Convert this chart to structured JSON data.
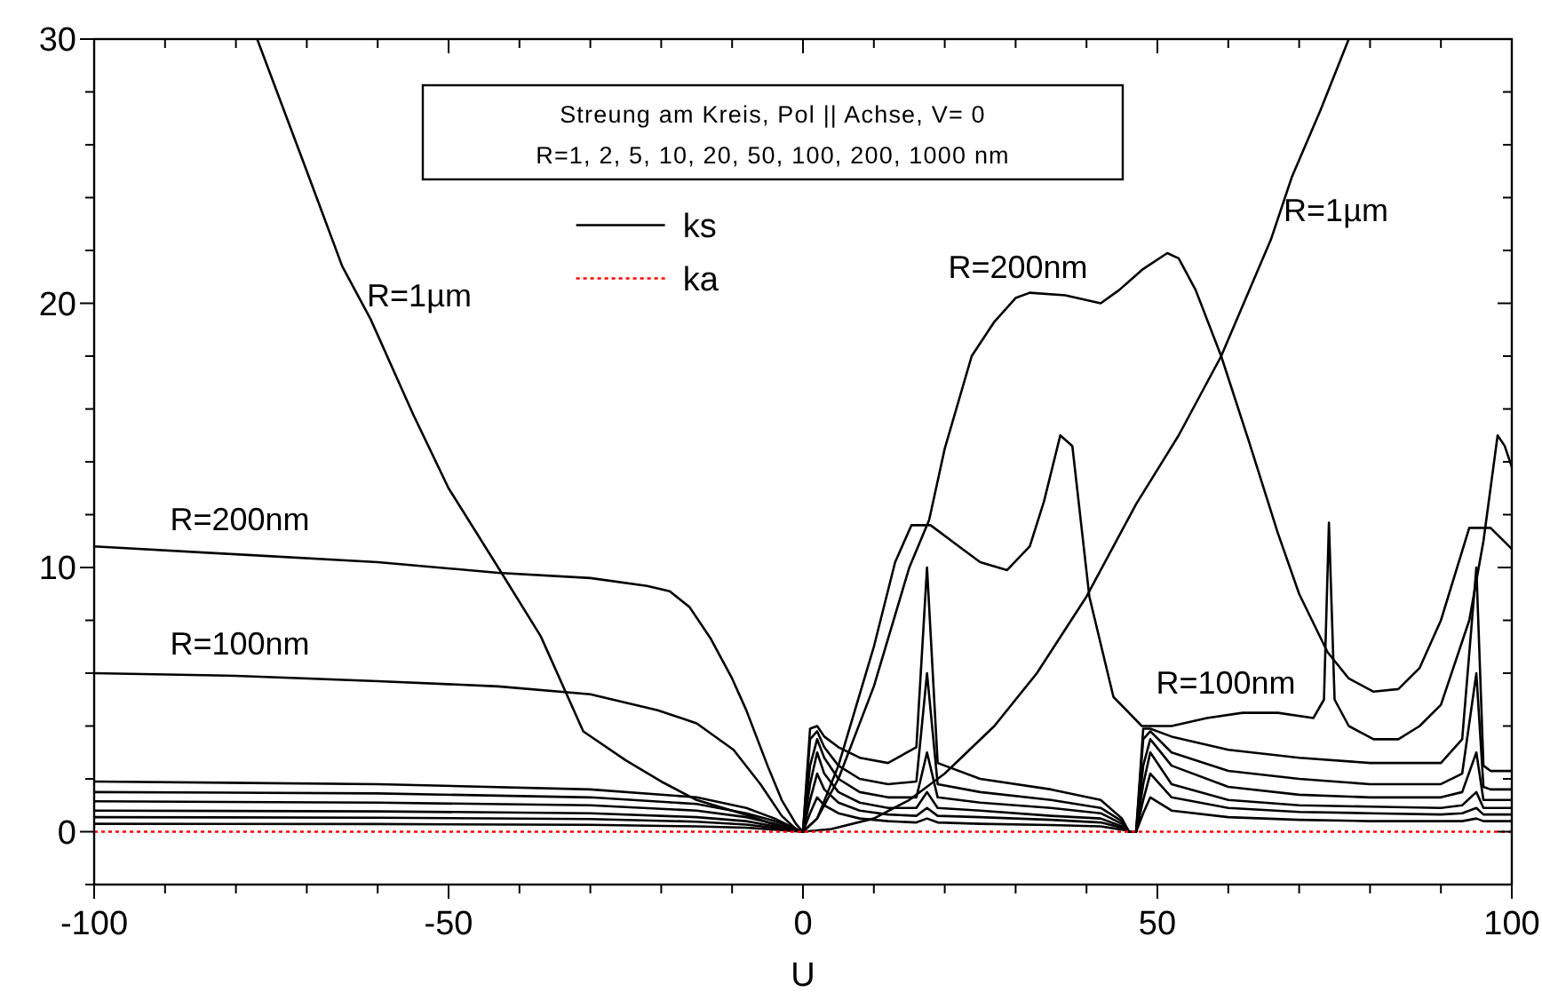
{
  "chart_data": {
    "type": "line",
    "title": "Streung am Kreis, Pol || Achse, V=  0",
    "subtitle": "R=1, 2, 5, 10, 20, 50, 100, 200, 1000 nm",
    "xlabel": "U",
    "xlim": [
      -100,
      100
    ],
    "ylim": [
      -2,
      30
    ],
    "xticks": [
      -100,
      {
        "value": -90,
        "label": null
      },
      {
        "value": -80,
        "label": null
      },
      {
        "value": -70,
        "label": null
      },
      {
        "value": -60,
        "label": null
      },
      -50,
      {
        "value": -40,
        "label": null
      },
      {
        "value": -30,
        "label": null
      },
      {
        "value": -20,
        "label": null
      },
      {
        "value": -10,
        "label": null
      },
      0,
      {
        "value": 10,
        "label": null
      },
      {
        "value": 20,
        "label": null
      },
      {
        "value": 30,
        "label": null
      },
      {
        "value": 40,
        "label": null
      },
      50,
      {
        "value": 60,
        "label": null
      },
      {
        "value": 70,
        "label": null
      },
      {
        "value": 80,
        "label": null
      },
      {
        "value": 90,
        "label": null
      },
      100
    ],
    "yticks": [
      {
        "value": -2,
        "label": null
      },
      0,
      {
        "value": 2,
        "label": null
      },
      {
        "value": 4,
        "label": null
      },
      {
        "value": 6,
        "label": null
      },
      {
        "value": 8,
        "label": null
      },
      10,
      {
        "value": 12,
        "label": null
      },
      {
        "value": 14,
        "label": null
      },
      {
        "value": 16,
        "label": null
      },
      {
        "value": 18,
        "label": null
      },
      20,
      {
        "value": 22,
        "label": null
      },
      {
        "value": 24,
        "label": null
      },
      {
        "value": 26,
        "label": null
      },
      {
        "value": 28,
        "label": null
      },
      30
    ],
    "grid": false,
    "legend": "top",
    "marker": "none",
    "annotations": [
      "R=1µm",
      "R=200nm",
      "R=100nm",
      "R=200nm",
      "R=1µm",
      "R=100nm"
    ],
    "series": [
      {
        "name": "ks",
        "color": "#000000",
        "line_style": "solid",
        "x": [
          -100,
          -80,
          -60,
          -43,
          -30,
          -22,
          -18.8,
          -16,
          -13,
          -10,
          -8,
          -5,
          -3,
          -1,
          0,
          2,
          5,
          10,
          15,
          17.8,
          20,
          23.8,
          27,
          30,
          32,
          37,
          42,
          44.6,
          48,
          51.4,
          53,
          55.4,
          59,
          63,
          67,
          70,
          74,
          77,
          80.5,
          84,
          87,
          90,
          94,
          97,
          100
        ],
        "values": [
          10.8,
          10.5,
          10.2,
          9.8,
          9.6,
          9.3,
          9.1,
          8.5,
          7.3,
          5.8,
          4.6,
          2.5,
          1.2,
          0.3,
          0,
          0.5,
          2,
          5.5,
          10,
          11.8,
          14.5,
          18,
          19.3,
          20.2,
          20.4,
          20.3,
          20,
          20.5,
          21.3,
          21.9,
          21.7,
          20.5,
          18,
          14.7,
          11.3,
          9,
          6.8,
          5.8,
          5.3,
          5.4,
          6.2,
          8,
          11.5,
          11.5,
          10.7
        ]
      },
      {
        "color": "#000000",
        "line_style": "solid",
        "x": [
          -77,
          -70,
          -65,
          -61,
          -55,
          -50,
          -43,
          -37,
          -31,
          -25,
          -20,
          -15,
          -10,
          -7.5,
          -5,
          -2,
          0,
          4,
          10,
          15,
          20,
          27,
          33,
          40,
          47,
          53,
          59,
          66,
          69,
          73,
          77
        ],
        "values": [
          30,
          25,
          21.4,
          19.4,
          15.8,
          13,
          10,
          7.4,
          3.8,
          2.7,
          1.9,
          1.2,
          0.8,
          0.6,
          0.35,
          0.1,
          0,
          0.1,
          0.5,
          1.2,
          2.2,
          4,
          6,
          8.9,
          12.4,
          15,
          18,
          22.4,
          24.8,
          27.3,
          30
        ]
      },
      {
        "color": "#000000",
        "line_style": "solid",
        "x": [
          -100,
          -80,
          -60,
          -43,
          -30,
          -20.5,
          -15,
          -9.8,
          -6,
          -3,
          -1,
          0,
          2,
          5,
          10,
          13,
          15.3,
          18,
          22,
          25,
          28.8,
          32,
          34,
          36.3,
          38,
          40.4,
          43.8,
          47.8,
          52,
          57,
          62,
          67,
          72,
          73.5,
          74.2,
          75,
          77,
          80.5,
          84,
          87,
          90,
          94,
          96,
          98,
          99,
          100
        ],
        "values": [
          6,
          5.9,
          5.7,
          5.5,
          5.2,
          4.6,
          4.1,
          3.1,
          1.8,
          0.6,
          0.1,
          0,
          0.5,
          2.5,
          7,
          10.2,
          11.6,
          11.6,
          10.8,
          10.2,
          9.9,
          10.8,
          12.5,
          15,
          14.6,
          8.9,
          5.1,
          4,
          4,
          4.3,
          4.5,
          4.5,
          4.3,
          5,
          11.7,
          5,
          4,
          3.5,
          3.5,
          4,
          4.8,
          8,
          11,
          15,
          14.6,
          13.8
        ]
      },
      {
        "color": "#000000",
        "line_style": "solid",
        "x": [
          -100,
          -60,
          -30,
          -15,
          -8,
          -4,
          -1,
          0,
          1,
          2,
          3,
          5,
          8,
          12,
          16,
          17.5,
          19,
          25,
          35,
          42,
          45,
          46,
          47,
          48,
          49,
          52,
          60,
          70,
          80,
          90,
          93,
          95,
          96,
          97,
          100
        ],
        "values": [
          1.9,
          1.8,
          1.6,
          1.3,
          0.9,
          0.5,
          0.1,
          0,
          3.9,
          4,
          3.6,
          3.2,
          2.8,
          2.6,
          3.2,
          10,
          2.6,
          2,
          1.6,
          1.2,
          0.5,
          0,
          0,
          3.9,
          3.9,
          3.6,
          3.1,
          2.8,
          2.6,
          2.6,
          3.5,
          10,
          2.5,
          2.3,
          2.3
        ]
      },
      {
        "color": "#000000",
        "line_style": "solid",
        "x": [
          -100,
          -60,
          -30,
          -15,
          -8,
          -4,
          -1,
          0,
          1,
          2,
          3,
          5,
          8,
          12,
          16,
          17.5,
          19,
          25,
          35,
          42,
          45,
          46,
          47,
          48,
          49,
          52,
          60,
          70,
          80,
          90,
          93,
          95,
          96,
          97,
          100
        ],
        "values": [
          1.5,
          1.45,
          1.3,
          1.05,
          0.7,
          0.4,
          0.1,
          0,
          3.5,
          3.8,
          3.2,
          2.5,
          2,
          1.8,
          1.9,
          6,
          1.8,
          1.5,
          1.2,
          0.9,
          0.4,
          0,
          0,
          3.5,
          3.8,
          3,
          2.3,
          2,
          1.8,
          1.8,
          2.2,
          6,
          1.7,
          1.6,
          1.6
        ]
      },
      {
        "color": "#000000",
        "line_style": "solid",
        "x": [
          -100,
          -60,
          -30,
          -15,
          -8,
          -4,
          -1,
          0,
          1,
          2,
          3,
          5,
          8,
          12,
          16,
          17.5,
          19,
          25,
          35,
          42,
          45,
          46,
          47,
          48,
          49,
          52,
          60,
          70,
          80,
          90,
          93,
          95,
          96,
          97,
          100
        ],
        "values": [
          1.15,
          1.1,
          1,
          0.8,
          0.55,
          0.3,
          0.05,
          0,
          2.5,
          3.5,
          2.8,
          2,
          1.5,
          1.3,
          1.3,
          3,
          1.3,
          1.1,
          0.9,
          0.7,
          0.3,
          0,
          0,
          2.5,
          3.5,
          2.5,
          1.7,
          1.4,
          1.3,
          1.3,
          1.5,
          3,
          1.2,
          1.2,
          1.2
        ]
      },
      {
        "color": "#000000",
        "line_style": "solid",
        "x": [
          -100,
          -60,
          -30,
          -15,
          -8,
          -4,
          -1,
          0,
          1,
          2,
          3,
          5,
          8,
          12,
          16,
          17.5,
          19,
          25,
          35,
          42,
          45,
          46,
          47,
          48,
          49,
          52,
          60,
          70,
          80,
          90,
          93,
          95,
          96,
          97,
          100
        ],
        "values": [
          0.8,
          0.77,
          0.7,
          0.55,
          0.4,
          0.2,
          0.05,
          0,
          1.8,
          3,
          2.2,
          1.5,
          1.1,
          0.9,
          0.9,
          1.5,
          0.9,
          0.8,
          0.6,
          0.5,
          0.2,
          0,
          0,
          1.8,
          3,
          1.8,
          1.2,
          1,
          0.95,
          0.9,
          1,
          1.5,
          0.9,
          0.9,
          0.9
        ]
      },
      {
        "color": "#000000",
        "line_style": "solid",
        "x": [
          -100,
          -60,
          -30,
          -15,
          -8,
          -4,
          -1,
          0,
          1,
          2,
          3,
          5,
          8,
          12,
          16,
          17.5,
          19,
          25,
          35,
          42,
          45,
          46,
          47,
          48,
          49,
          52,
          60,
          70,
          80,
          90,
          93,
          95,
          96,
          97,
          100
        ],
        "values": [
          0.55,
          0.53,
          0.48,
          0.38,
          0.27,
          0.14,
          0.03,
          0,
          1.2,
          2.2,
          1.6,
          1.1,
          0.8,
          0.65,
          0.6,
          0.9,
          0.6,
          0.55,
          0.45,
          0.35,
          0.15,
          0,
          0,
          1.2,
          2.2,
          1.3,
          0.9,
          0.75,
          0.7,
          0.65,
          0.7,
          0.9,
          0.65,
          0.65,
          0.65
        ]
      },
      {
        "color": "#000000",
        "line_style": "solid",
        "x": [
          -100,
          -60,
          -30,
          -15,
          -8,
          -4,
          -1,
          0,
          1,
          2,
          3,
          5,
          8,
          12,
          16,
          17.5,
          19,
          25,
          35,
          42,
          45,
          46,
          47,
          48,
          49,
          52,
          60,
          70,
          80,
          90,
          93,
          95,
          96,
          97,
          100
        ],
        "values": [
          0.3,
          0.29,
          0.26,
          0.2,
          0.15,
          0.08,
          0.02,
          0,
          0.7,
          1.3,
          1,
          0.7,
          0.5,
          0.4,
          0.35,
          0.5,
          0.35,
          0.3,
          0.25,
          0.2,
          0.08,
          0,
          0,
          0.7,
          1.3,
          0.8,
          0.55,
          0.45,
          0.4,
          0.4,
          0.4,
          0.5,
          0.4,
          0.4,
          0.4
        ]
      },
      {
        "name": "ka",
        "color": "#ff0000",
        "line_style": "dotted",
        "x": [
          -100,
          100
        ],
        "values": [
          0,
          0
        ]
      }
    ]
  }
}
